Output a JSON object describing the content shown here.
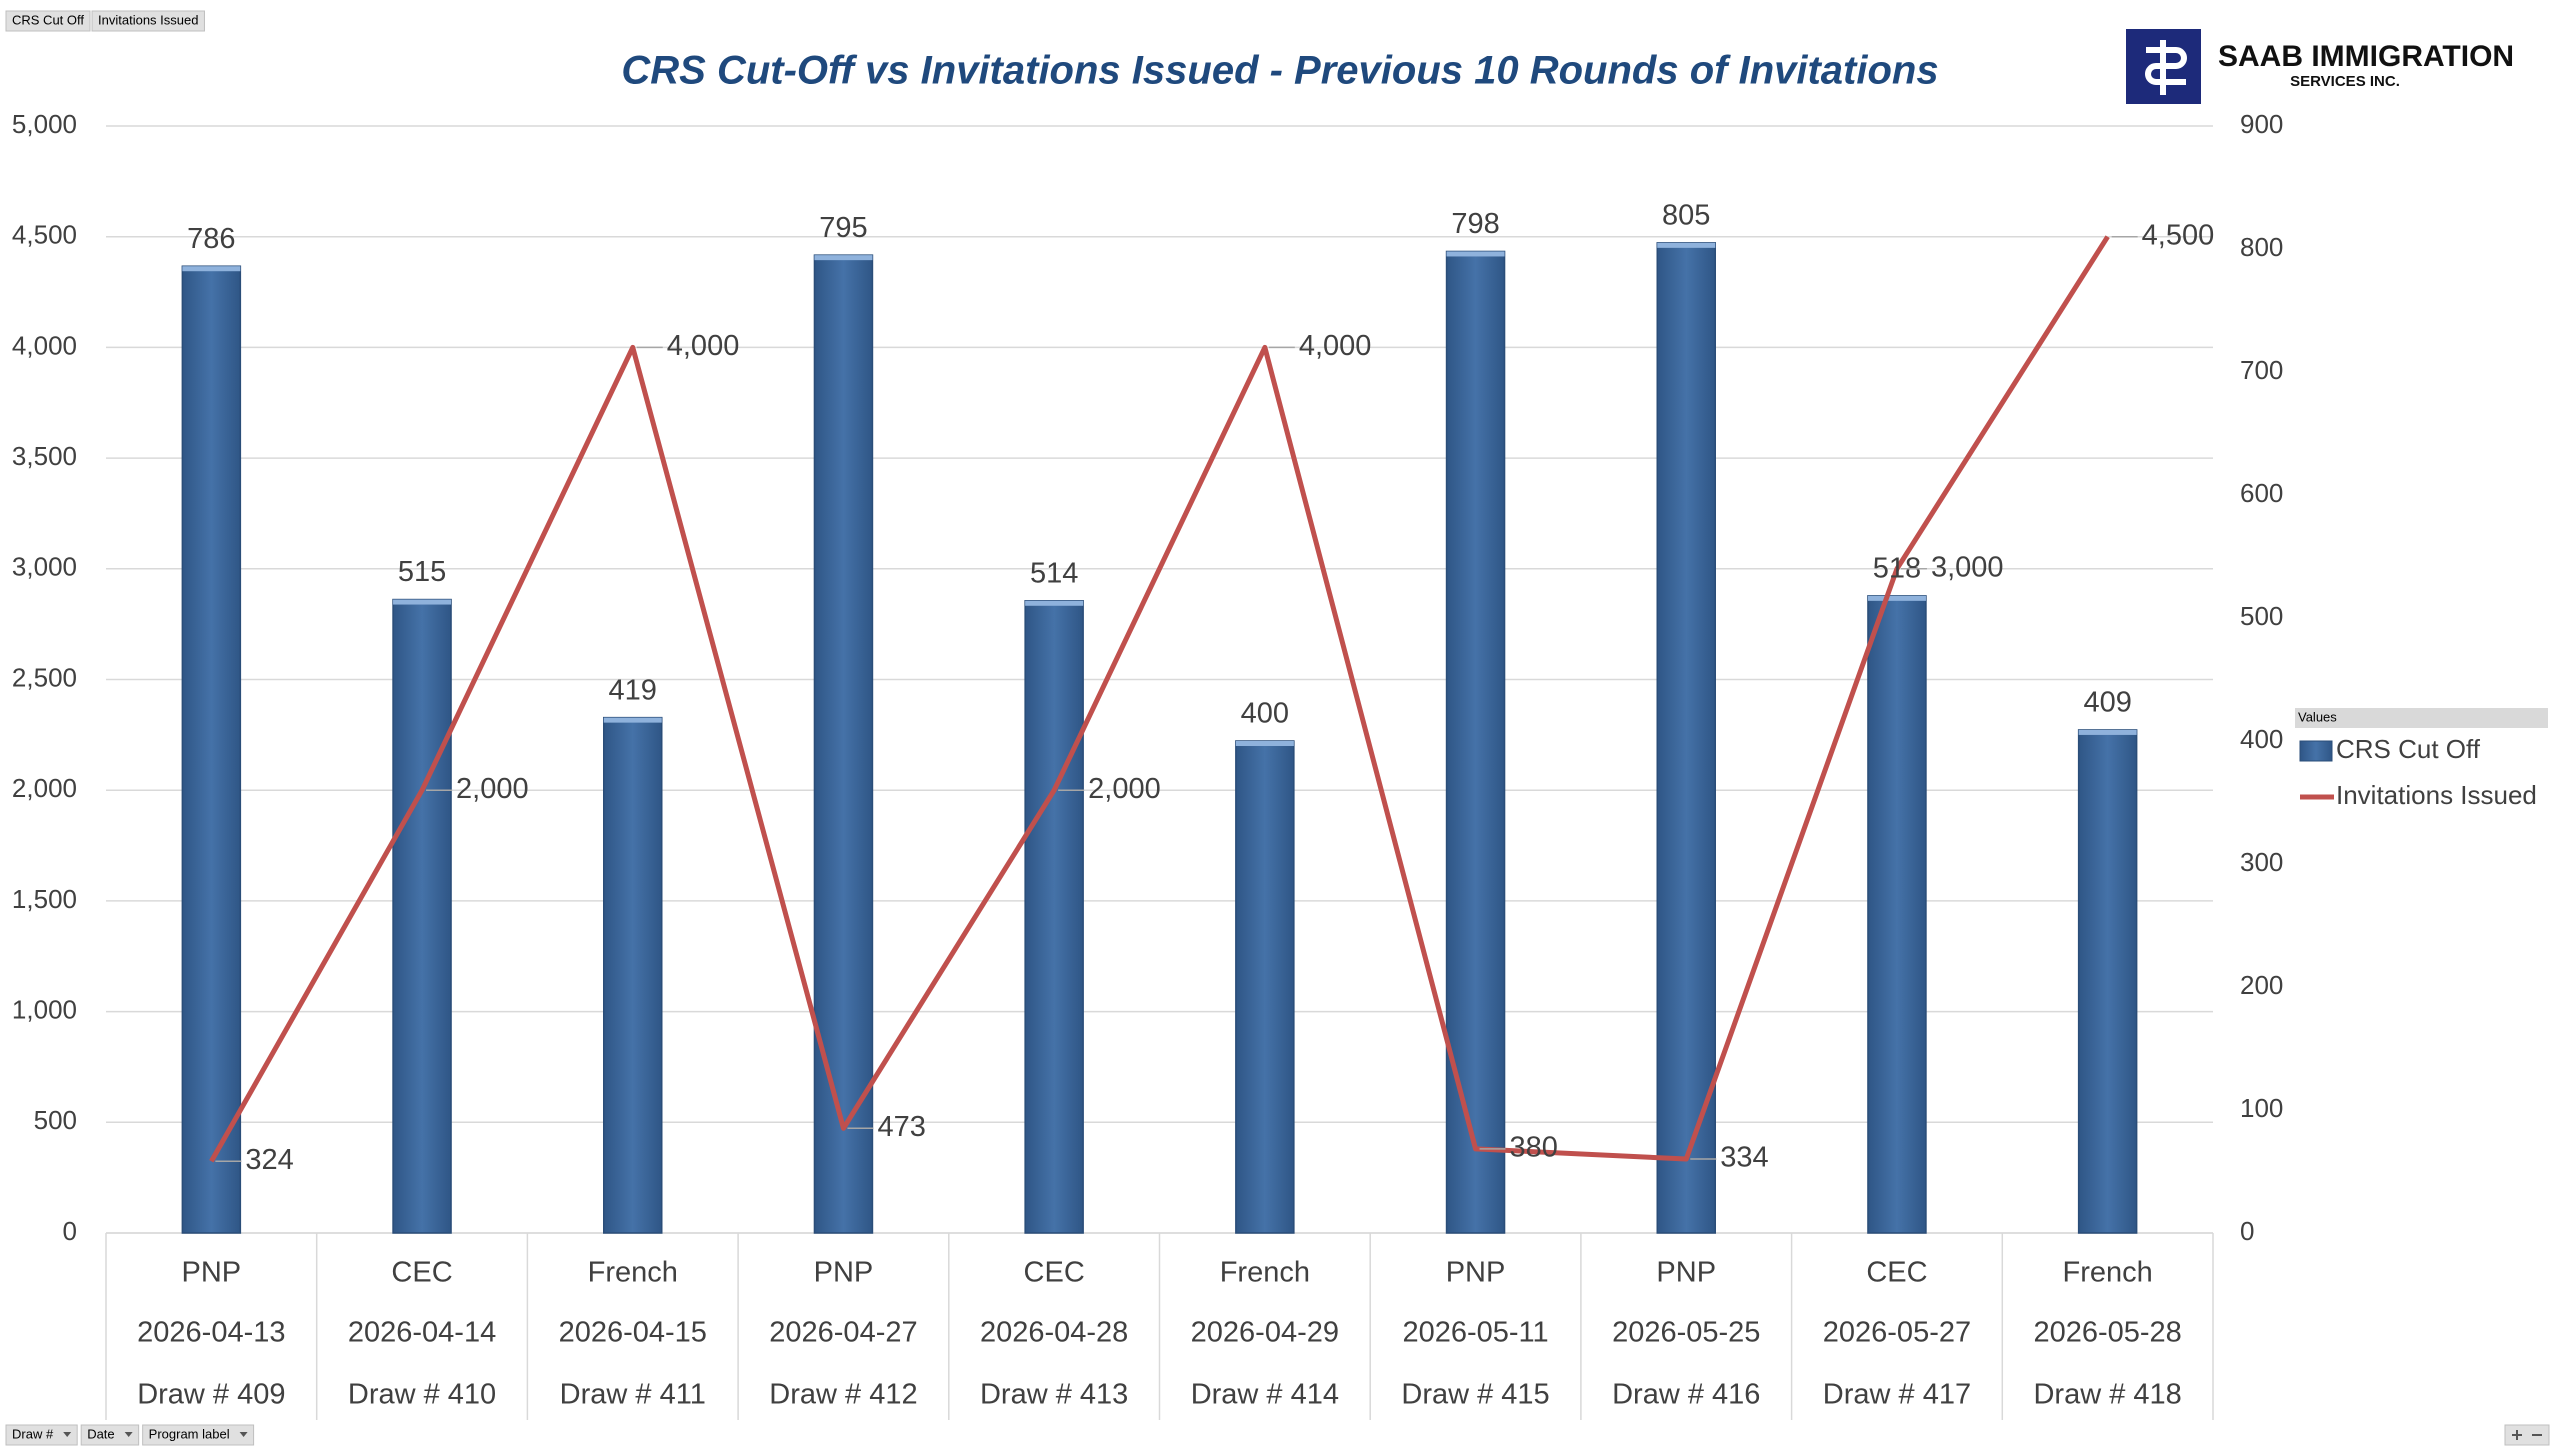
{
  "chart_data": {
    "type": "bar-line",
    "title": "CRS Cut-Off vs Invitations Issued - Previous 10 Rounds of Invitations",
    "categories": [
      [
        "PNP",
        "2026-04-13",
        "Draw # 409"
      ],
      [
        "CEC",
        "2026-04-14",
        "Draw # 410"
      ],
      [
        "French",
        "2026-04-15",
        "Draw # 411"
      ],
      [
        "PNP",
        "2026-04-27",
        "Draw # 412"
      ],
      [
        "CEC",
        "2026-04-28",
        "Draw # 413"
      ],
      [
        "French",
        "2026-04-29",
        "Draw # 414"
      ],
      [
        "PNP",
        "2026-05-11",
        "Draw # 415"
      ],
      [
        "PNP",
        "2026-05-25",
        "Draw # 416"
      ],
      [
        "CEC",
        "2026-05-27",
        "Draw # 417"
      ],
      [
        "French",
        "2026-05-28",
        "Draw # 418"
      ]
    ],
    "series": [
      {
        "name": "CRS Cut Off",
        "type": "bar",
        "axis": "y2",
        "color": "#3d6a9e",
        "values": [
          786,
          515,
          419,
          795,
          514,
          400,
          798,
          805,
          518,
          409
        ]
      },
      {
        "name": "Invitations Issued",
        "type": "line",
        "axis": "y",
        "color": "#c0504d",
        "values": [
          324,
          2000,
          4000,
          473,
          2000,
          4000,
          380,
          334,
          3000,
          4500
        ],
        "value_labels": [
          "324",
          "2,000",
          "4,000",
          "473",
          "2,000",
          "4,000",
          "380",
          "334",
          "3,000",
          "4,500"
        ]
      }
    ],
    "ylim": [
      0,
      5000
    ],
    "yticks": [
      0,
      500,
      {
        "value": 1000,
        "label": "1,000"
      },
      {
        "value": 1500,
        "label": "1,500"
      },
      {
        "value": 2000,
        "label": "2,000"
      },
      {
        "value": 2500,
        "label": "2,500"
      },
      {
        "value": 3000,
        "label": "3,000"
      },
      {
        "value": 3500,
        "label": "3,500"
      },
      {
        "value": 4000,
        "label": "4,000"
      },
      {
        "value": 4500,
        "label": "4,500"
      },
      {
        "value": 5000,
        "label": "5,000"
      }
    ],
    "y2lim": [
      0,
      900
    ],
    "y2ticks": [
      0,
      100,
      200,
      300,
      400,
      500,
      600,
      700,
      800,
      900
    ],
    "grid": true,
    "legend": "right",
    "legend_title": "Values"
  },
  "ui": {
    "value_buttons": [
      "CRS Cut Off",
      "Invitations Issued"
    ],
    "axis_buttons": [
      "Draw #",
      "Date",
      "Program label"
    ],
    "logo": {
      "name": "SAAB IMMIGRATION",
      "sub": "SERVICES INC."
    }
  }
}
